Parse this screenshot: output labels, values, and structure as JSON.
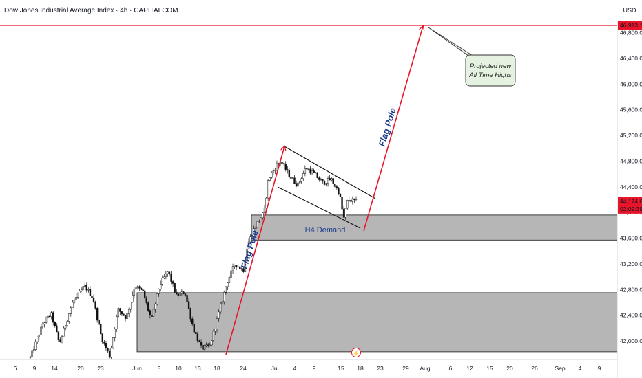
{
  "header": {
    "title": "Dow Jones Industrial Average Index · 4h · CAPITALCOM",
    "currency": "USD"
  },
  "colors": {
    "accent_red": "#e8142a",
    "zone_fill": "#b2b2b2",
    "note_fill": "#e6f2e1",
    "text_blue": "#1b3a8c"
  },
  "chart_data": {
    "type": "candlestick",
    "title": "Dow Jones Industrial Average Index · 4h · CAPITALCOM",
    "ylim": [
      41800,
      47000
    ],
    "y_ticks": [
      "42,000.0",
      "42,400.0",
      "42,800.0",
      "43,200.0",
      "43,600.0",
      "44,000.0",
      "44,400.0",
      "44,800.0",
      "45,200.0",
      "45,600.0",
      "46,000.0",
      "46,400.0",
      "46,800.0"
    ],
    "x_ticks": [
      "6",
      "9",
      "14",
      "20",
      "23",
      "Jun",
      "5",
      "10",
      "13",
      "18",
      "24",
      "Jul",
      "4",
      "9",
      "15",
      "18",
      "23",
      "29",
      "Aug",
      "6",
      "12",
      "15",
      "20",
      "26",
      "Sep",
      "4",
      "9"
    ],
    "price_path": [
      [
        0,
        41740
      ],
      [
        3,
        42270
      ],
      [
        5,
        42420
      ],
      [
        7,
        41960
      ],
      [
        10,
        42580
      ],
      [
        13,
        42860
      ],
      [
        15,
        42670
      ],
      [
        17,
        42060
      ],
      [
        19,
        41760
      ],
      [
        21,
        42490
      ],
      [
        23,
        42360
      ],
      [
        25,
        42860
      ],
      [
        27,
        42760
      ],
      [
        29,
        42320
      ],
      [
        31,
        42880
      ],
      [
        33,
        43080
      ],
      [
        35,
        42700
      ],
      [
        37,
        42760
      ],
      [
        39,
        42200
      ],
      [
        41,
        41880
      ],
      [
        43,
        41920
      ],
      [
        45,
        42400
      ],
      [
        47,
        42900
      ],
      [
        49,
        43200
      ],
      [
        51,
        43100
      ],
      [
        52,
        43500
      ],
      [
        54,
        43800
      ],
      [
        56,
        44000
      ],
      [
        57,
        44520
      ],
      [
        59,
        44740
      ],
      [
        60,
        44800
      ],
      [
        62,
        44580
      ],
      [
        64,
        44420
      ],
      [
        66,
        44700
      ],
      [
        68,
        44600
      ],
      [
        70,
        44460
      ],
      [
        72,
        44520
      ],
      [
        74,
        44300
      ],
      [
        75,
        43900
      ],
      [
        76,
        44200
      ],
      [
        78,
        44174
      ]
    ],
    "last_price": {
      "value": 44174.6,
      "label": "44,174.6",
      "countdown": "02:09:39"
    },
    "projected_high": {
      "value": 46913.1,
      "label": "46,913.1"
    },
    "zones": [
      {
        "name": "H4 Demand",
        "low": 43570,
        "high": 43960
      },
      {
        "name": "",
        "low": 41830,
        "high": 42750
      }
    ],
    "annotations": {
      "flag_pole_1": "Flag Pole",
      "flag_pole_2": "Flag Pole",
      "demand_label": "H4 Demand",
      "note_line1": "Projected new",
      "note_line2": "All Time Highs"
    }
  }
}
